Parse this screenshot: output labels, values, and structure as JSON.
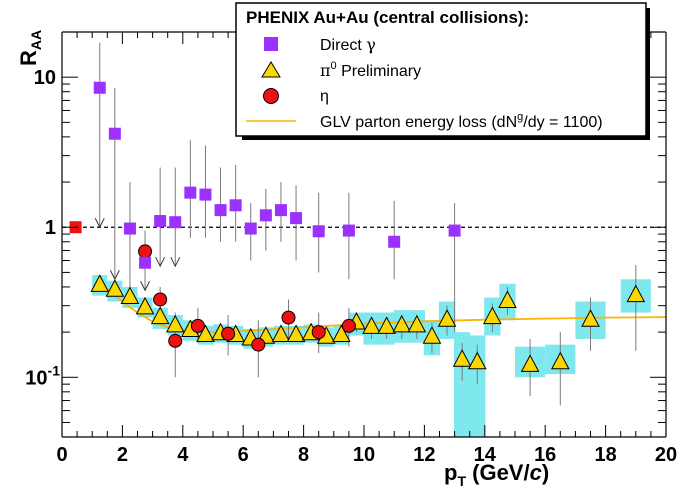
{
  "chart_data": {
    "type": "scatter",
    "xlabel": "p_T (GeV/c)",
    "xlabel_main": "p",
    "xlabel_sub": "T",
    "xlabel_unit_prefix": " (GeV/",
    "xlabel_unit_var": "c",
    "xlabel_unit_suffix": ")",
    "ylabel": "R_AA",
    "ylabel_main": "R",
    "ylabel_sub": "AA",
    "xlim": [
      0,
      20
    ],
    "ylim": [
      0.04,
      20
    ],
    "yscale": "log",
    "x_ticks": [
      0,
      2,
      4,
      6,
      8,
      10,
      12,
      14,
      16,
      18,
      20
    ],
    "x_tick_labels": [
      "0",
      "2",
      "4",
      "6",
      "8",
      "10",
      "12",
      "14",
      "16",
      "18",
      "20"
    ],
    "y_tick_labels": [
      {
        "value": 10,
        "base": "10",
        "exp": ""
      },
      {
        "value": 1,
        "base": "1",
        "exp": ""
      },
      {
        "value": 0.1,
        "base": "10",
        "exp": "-1"
      }
    ],
    "reference_line": {
      "y": 1,
      "style": "dashed",
      "color": "#000000"
    },
    "legend": {
      "title": "PHENIX Au+Au (central collisions):",
      "direct_gamma": {
        "label_text": "Direct ",
        "label_symbol": "γ"
      },
      "pi0": {
        "label_symbol": "π",
        "label_sup": "0",
        "label_text": " Preliminary"
      },
      "eta": {
        "label": "η"
      },
      "glv": {
        "label_prefix": "GLV parton energy loss (dN",
        "label_sup": "g",
        "label_suffix": "/dy = 1100)"
      }
    },
    "colors": {
      "direct_gamma": "#9b30ff",
      "pi0_fill": "#ffd700",
      "eta_fill": "#ee1111",
      "sys_band": "#7fe8ee",
      "glv_curve": "#ffb300",
      "norm_box": "#ee1111"
    },
    "normalization_box": {
      "x": 0.45,
      "y": 1.0
    },
    "series": [
      {
        "name": "Direct γ",
        "marker": "square",
        "points": [
          {
            "x": 1.25,
            "y": 8.5,
            "lo": 1.0,
            "hi": 17.0,
            "arrow": true
          },
          {
            "x": 1.75,
            "y": 4.2,
            "lo": 0.45,
            "hi": 8.5,
            "arrow": true
          },
          {
            "x": 2.25,
            "y": 0.98,
            "lo": 0.33,
            "hi": 2.0
          },
          {
            "x": 2.75,
            "y": 0.58,
            "lo": 0.38,
            "hi": 0.95,
            "arrow": true
          },
          {
            "x": 3.25,
            "y": 1.1,
            "lo": 0.55,
            "hi": 2.5,
            "arrow": true
          },
          {
            "x": 3.75,
            "y": 1.08,
            "lo": 0.55,
            "hi": 2.5,
            "arrow": true
          },
          {
            "x": 4.25,
            "y": 1.7,
            "lo": 0.85,
            "hi": 3.8
          },
          {
            "x": 4.75,
            "y": 1.65,
            "lo": 0.85,
            "hi": 3.5
          },
          {
            "x": 5.25,
            "y": 1.3,
            "lo": 0.8,
            "hi": 2.5
          },
          {
            "x": 5.75,
            "y": 1.4,
            "lo": 0.8,
            "hi": 2.6
          },
          {
            "x": 6.25,
            "y": 0.98,
            "lo": 0.6,
            "hi": 1.45
          },
          {
            "x": 6.75,
            "y": 1.2,
            "lo": 0.7,
            "hi": 1.8
          },
          {
            "x": 7.25,
            "y": 1.3,
            "lo": 0.8,
            "hi": 2.0
          },
          {
            "x": 7.75,
            "y": 1.15,
            "lo": 0.6,
            "hi": 1.9
          },
          {
            "x": 8.5,
            "y": 0.94,
            "lo": 0.5,
            "hi": 1.7
          },
          {
            "x": 9.5,
            "y": 0.95,
            "lo": 0.45,
            "hi": 1.7
          },
          {
            "x": 11.0,
            "y": 0.8,
            "lo": 0.45,
            "hi": 1.5
          },
          {
            "x": 13.0,
            "y": 0.95,
            "lo": 0.2,
            "hi": 1.45
          }
        ]
      },
      {
        "name": "π0 Preliminary",
        "marker": "triangle",
        "points": [
          {
            "x": 1.25,
            "y": 0.41,
            "lo": 0.38,
            "hi": 0.45,
            "sys_lo": 0.35,
            "sys_hi": 0.48
          },
          {
            "x": 1.75,
            "y": 0.38,
            "lo": 0.35,
            "hi": 0.41,
            "sys_lo": 0.32,
            "sys_hi": 0.44
          },
          {
            "x": 2.25,
            "y": 0.34,
            "lo": 0.31,
            "hi": 0.37,
            "sys_lo": 0.29,
            "sys_hi": 0.4
          },
          {
            "x": 2.75,
            "y": 0.29,
            "lo": 0.27,
            "hi": 0.32,
            "sys_lo": 0.25,
            "sys_hi": 0.34
          },
          {
            "x": 3.25,
            "y": 0.25,
            "lo": 0.23,
            "hi": 0.27,
            "sys_lo": 0.21,
            "sys_hi": 0.29
          },
          {
            "x": 3.75,
            "y": 0.22,
            "lo": 0.2,
            "hi": 0.24,
            "sys_lo": 0.19,
            "sys_hi": 0.26
          },
          {
            "x": 4.25,
            "y": 0.205,
            "lo": 0.19,
            "hi": 0.22,
            "sys_lo": 0.175,
            "sys_hi": 0.24
          },
          {
            "x": 4.75,
            "y": 0.19,
            "lo": 0.175,
            "hi": 0.205,
            "sys_lo": 0.165,
            "sys_hi": 0.22
          },
          {
            "x": 5.25,
            "y": 0.195,
            "lo": 0.18,
            "hi": 0.21,
            "sys_lo": 0.17,
            "sys_hi": 0.225
          },
          {
            "x": 5.75,
            "y": 0.19,
            "lo": 0.175,
            "hi": 0.205,
            "sys_lo": 0.165,
            "sys_hi": 0.22
          },
          {
            "x": 6.25,
            "y": 0.18,
            "lo": 0.165,
            "hi": 0.195,
            "sys_lo": 0.155,
            "sys_hi": 0.21
          },
          {
            "x": 6.75,
            "y": 0.185,
            "lo": 0.17,
            "hi": 0.2,
            "sys_lo": 0.16,
            "sys_hi": 0.215
          },
          {
            "x": 7.25,
            "y": 0.19,
            "lo": 0.175,
            "hi": 0.205,
            "sys_lo": 0.165,
            "sys_hi": 0.22
          },
          {
            "x": 7.75,
            "y": 0.19,
            "lo": 0.175,
            "hi": 0.205,
            "sys_lo": 0.165,
            "sys_hi": 0.22
          },
          {
            "x": 8.25,
            "y": 0.195,
            "lo": 0.18,
            "hi": 0.21,
            "sys_lo": 0.17,
            "sys_hi": 0.225
          },
          {
            "x": 8.75,
            "y": 0.185,
            "lo": 0.17,
            "hi": 0.2,
            "sys_lo": 0.16,
            "sys_hi": 0.215
          },
          {
            "x": 9.25,
            "y": 0.19,
            "lo": 0.175,
            "hi": 0.205,
            "sys_lo": 0.165,
            "sys_hi": 0.22
          },
          {
            "x": 9.75,
            "y": 0.23,
            "lo": 0.2,
            "hi": 0.26,
            "sys_lo": 0.19,
            "sys_hi": 0.27
          },
          {
            "x": 10.25,
            "y": 0.215,
            "lo": 0.18,
            "hi": 0.25,
            "sys_lo": 0.165,
            "sys_hi": 0.27
          },
          {
            "x": 10.75,
            "y": 0.215,
            "lo": 0.18,
            "hi": 0.25,
            "sys_lo": 0.165,
            "sys_hi": 0.27
          },
          {
            "x": 11.25,
            "y": 0.22,
            "lo": 0.18,
            "hi": 0.26,
            "sys_lo": 0.17,
            "sys_hi": 0.28
          },
          {
            "x": 11.75,
            "y": 0.22,
            "lo": 0.18,
            "hi": 0.26,
            "sys_lo": 0.17,
            "sys_hi": 0.28
          },
          {
            "x": 12.25,
            "y": 0.185,
            "lo": 0.145,
            "hi": 0.23,
            "sys_lo": 0.14,
            "sys_hi": 0.24
          },
          {
            "x": 12.75,
            "y": 0.24,
            "lo": 0.19,
            "hi": 0.3,
            "sys_lo": 0.18,
            "sys_hi": 0.32
          },
          {
            "x": 13.25,
            "y": 0.13,
            "lo": 0.095,
            "hi": 0.17,
            "sys_lo": 0.04,
            "sys_hi": 0.2
          },
          {
            "x": 13.75,
            "y": 0.125,
            "lo": 0.09,
            "hi": 0.165,
            "sys_lo": 0.04,
            "sys_hi": 0.19
          },
          {
            "x": 14.25,
            "y": 0.25,
            "lo": 0.2,
            "hi": 0.31,
            "sys_lo": 0.19,
            "sys_hi": 0.34
          },
          {
            "x": 14.75,
            "y": 0.32,
            "lo": 0.26,
            "hi": 0.4,
            "sys_lo": 0.24,
            "sys_hi": 0.42
          },
          {
            "x": 15.5,
            "y": 0.12,
            "lo": 0.075,
            "hi": 0.18,
            "sys_lo": 0.1,
            "sys_hi": 0.16
          },
          {
            "x": 16.5,
            "y": 0.125,
            "lo": 0.065,
            "hi": 0.2,
            "sys_lo": 0.105,
            "sys_hi": 0.165
          },
          {
            "x": 17.5,
            "y": 0.24,
            "lo": 0.15,
            "hi": 0.34,
            "sys_lo": 0.18,
            "sys_hi": 0.32
          },
          {
            "x": 19.0,
            "y": 0.35,
            "lo": 0.15,
            "hi": 0.56,
            "sys_lo": 0.27,
            "sys_hi": 0.45
          }
        ]
      },
      {
        "name": "η",
        "marker": "circle",
        "points": [
          {
            "x": 2.75,
            "y": 0.69,
            "lo": 0.59,
            "hi": 0.81
          },
          {
            "x": 3.25,
            "y": 0.33,
            "lo": 0.27,
            "hi": 0.4
          },
          {
            "x": 3.75,
            "y": 0.175,
            "lo": 0.1,
            "hi": 0.27
          },
          {
            "x": 4.5,
            "y": 0.22,
            "lo": 0.17,
            "hi": 0.29
          },
          {
            "x": 5.5,
            "y": 0.195,
            "lo": 0.14,
            "hi": 0.26
          },
          {
            "x": 6.5,
            "y": 0.165,
            "lo": 0.1,
            "hi": 0.24
          },
          {
            "x": 7.5,
            "y": 0.25,
            "lo": 0.18,
            "hi": 0.33
          },
          {
            "x": 8.5,
            "y": 0.2,
            "lo": 0.145,
            "hi": 0.27
          },
          {
            "x": 9.5,
            "y": 0.22,
            "lo": 0.16,
            "hi": 0.29
          }
        ]
      },
      {
        "name": "GLV parton energy loss",
        "type": "line",
        "points": [
          {
            "x": 1.5,
            "y": 0.39
          },
          {
            "x": 2.0,
            "y": 0.32
          },
          {
            "x": 2.5,
            "y": 0.27
          },
          {
            "x": 3.0,
            "y": 0.235
          },
          {
            "x": 3.5,
            "y": 0.215
          },
          {
            "x": 4.0,
            "y": 0.205
          },
          {
            "x": 5.0,
            "y": 0.2
          },
          {
            "x": 6.0,
            "y": 0.203
          },
          {
            "x": 8.0,
            "y": 0.215
          },
          {
            "x": 10.0,
            "y": 0.228
          },
          {
            "x": 12.0,
            "y": 0.236
          },
          {
            "x": 14.0,
            "y": 0.242
          },
          {
            "x": 16.0,
            "y": 0.246
          },
          {
            "x": 18.0,
            "y": 0.25
          },
          {
            "x": 20.0,
            "y": 0.252
          }
        ]
      }
    ]
  }
}
